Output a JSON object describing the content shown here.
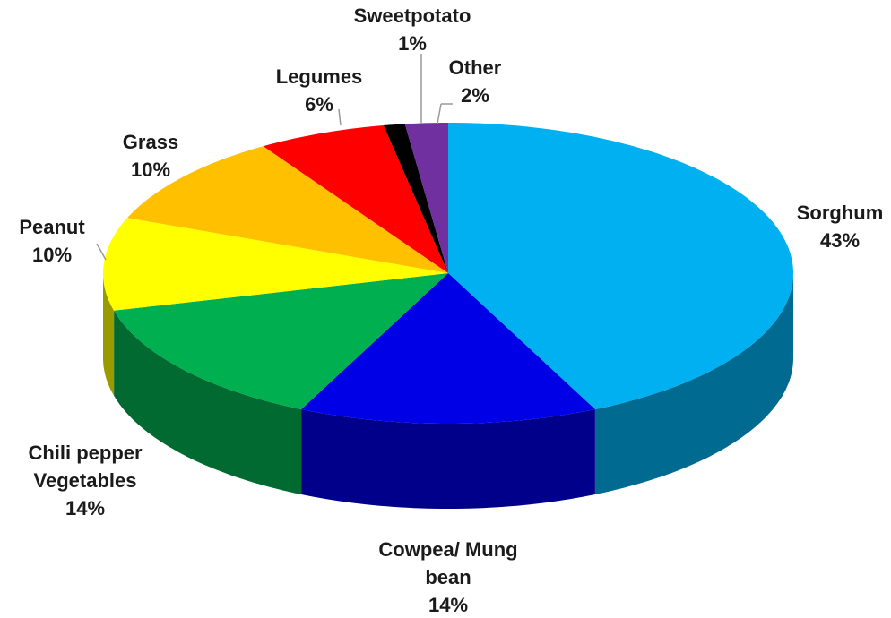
{
  "chart_data": {
    "type": "pie3d",
    "categories": [
      "Sorghum",
      "Cowpea/ Mung bean",
      "Chili pepper Vegetables",
      "Peanut",
      "Grass",
      "Legumes",
      "Sweetpotato",
      "Other"
    ],
    "values": [
      43,
      14,
      14,
      10,
      10,
      6,
      1,
      2
    ],
    "value_labels": [
      "43%",
      "14%",
      "14%",
      "10%",
      "10%",
      "6%",
      "1%",
      "2%"
    ],
    "colors": [
      "#00b0f0",
      "#0000e6",
      "#00b050",
      "#ffff00",
      "#ffc000",
      "#ff0000",
      "#000000",
      "#7030a0"
    ]
  }
}
